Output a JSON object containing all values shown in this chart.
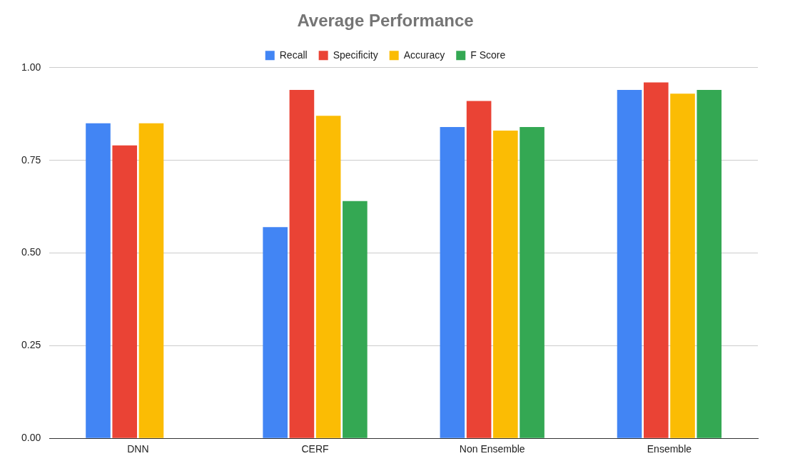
{
  "chart_data": {
    "type": "bar",
    "title": "Average Performance",
    "categories": [
      "DNN",
      "CERF",
      "Non Ensemble",
      "Ensemble"
    ],
    "series": [
      {
        "name": "Recall",
        "color": "#4285f4",
        "values": [
          0.85,
          0.57,
          0.84,
          0.94
        ]
      },
      {
        "name": "Specificity",
        "color": "#ea4335",
        "values": [
          0.79,
          0.94,
          0.91,
          0.96
        ]
      },
      {
        "name": "Accuracy",
        "color": "#fbbc04",
        "values": [
          0.85,
          0.87,
          0.83,
          0.93
        ]
      },
      {
        "name": "F Score",
        "color": "#34a853",
        "values": [
          null,
          0.64,
          0.84,
          0.94
        ]
      }
    ],
    "ylim": [
      0,
      1
    ],
    "yticks": [
      {
        "value": 0,
        "label": "0.00"
      },
      {
        "value": 0.25,
        "label": "0.25"
      },
      {
        "value": 0.5,
        "label": "0.50"
      },
      {
        "value": 0.75,
        "label": "0.75"
      },
      {
        "value": 1,
        "label": "1.00"
      }
    ],
    "grid": "y",
    "legend": "top"
  }
}
